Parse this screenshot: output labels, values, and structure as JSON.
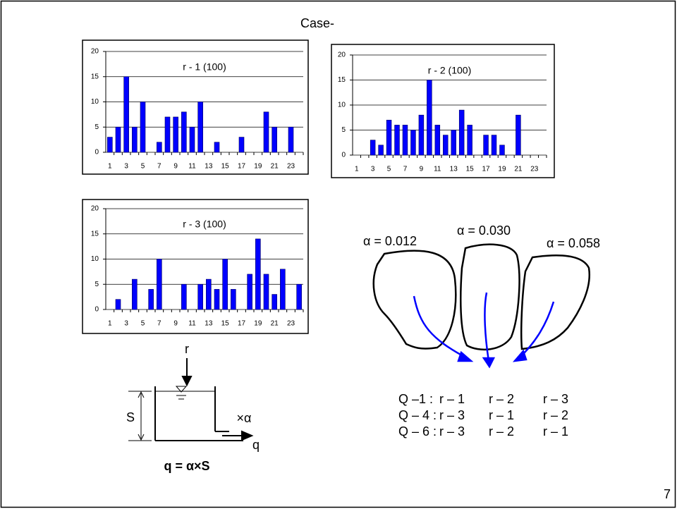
{
  "title": "Case-",
  "chart_data": [
    {
      "type": "bar",
      "title": "r - 1 (100)",
      "color": "#0000ff",
      "grid": true,
      "categories": [
        "1",
        null,
        "3",
        null,
        "5",
        null,
        "7",
        null,
        "9",
        null,
        "11",
        null,
        "13",
        null,
        "15",
        null,
        "17",
        null,
        "19",
        null,
        "21",
        null,
        "23",
        null
      ],
      "values": [
        3,
        5,
        15,
        5,
        10,
        0,
        2,
        7,
        7,
        8,
        5,
        10,
        0,
        2,
        0,
        0,
        3,
        0,
        0,
        8,
        5,
        0,
        5,
        0
      ],
      "ylim": [
        0,
        20
      ],
      "yticks": [
        0,
        5,
        10,
        15,
        20
      ]
    },
    {
      "type": "bar",
      "title": "r  - 2 (100)",
      "color": "#0000ff",
      "grid": true,
      "categories": [
        "1",
        null,
        "3",
        null,
        "5",
        null,
        "7",
        null,
        "9",
        null,
        "11",
        null,
        "13",
        null,
        "15",
        null,
        "17",
        null,
        "19",
        null,
        "21",
        null,
        "23",
        null
      ],
      "values": [
        0,
        0,
        3,
        2,
        7,
        6,
        6,
        5,
        8,
        15,
        6,
        4,
        5,
        9,
        6,
        0,
        4,
        4,
        2,
        0,
        8,
        0,
        0,
        0
      ],
      "ylim": [
        0,
        20
      ],
      "yticks": [
        0,
        5,
        10,
        15,
        20
      ]
    },
    {
      "type": "bar",
      "title": "r  - 3 (100)",
      "color": "#0000ff",
      "grid": true,
      "categories": [
        "1",
        null,
        "3",
        null,
        "5",
        null,
        "7",
        null,
        "9",
        null,
        "11",
        null,
        "13",
        null,
        "15",
        null,
        "17",
        null,
        "19",
        null,
        "21",
        null,
        "23",
        null
      ],
      "values": [
        0,
        2,
        0,
        6,
        0,
        4,
        10,
        0,
        0,
        5,
        0,
        5,
        6,
        4,
        10,
        4,
        0,
        7,
        14,
        7,
        3,
        8,
        0,
        5
      ],
      "ylim": [
        0,
        20
      ],
      "yticks": [
        0,
        5,
        10,
        15,
        20
      ]
    }
  ],
  "alphas": [
    "α = 0.012",
    "α = 0.030",
    "α = 0.058"
  ],
  "tank": {
    "input": "r",
    "storage": "S",
    "coefficient": "×α",
    "output": "q",
    "equation": "q = α×S"
  },
  "cases": [
    [
      "Q –1 :",
      "r – 1",
      "r – 2",
      "r – 3"
    ],
    [
      "Q – 4 :",
      "r – 3",
      "r – 1",
      "r – 2"
    ],
    [
      "Q – 6 :",
      "r – 3",
      "r – 2",
      "r – 1"
    ]
  ],
  "page_number": "7"
}
